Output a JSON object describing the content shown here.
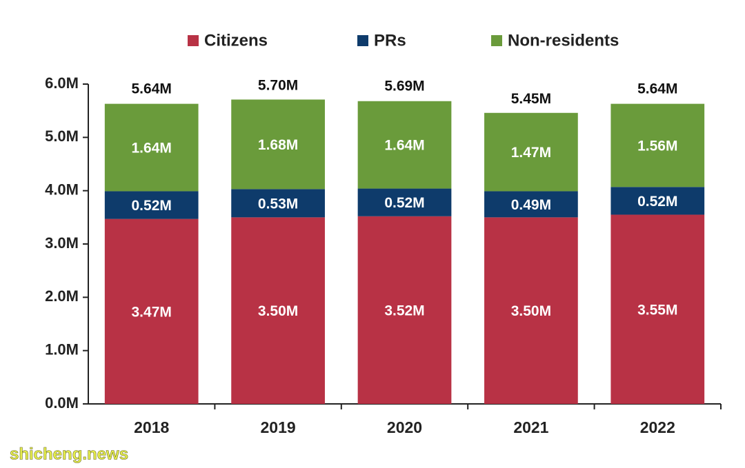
{
  "chart_data": {
    "type": "stacked_bar",
    "categories": [
      "2018",
      "2019",
      "2020",
      "2021",
      "2022"
    ],
    "series": [
      {
        "name": "Citizens",
        "color": "#b83245",
        "values": [
          3.47,
          3.5,
          3.52,
          3.5,
          3.55
        ],
        "value_labels": [
          "3.47M",
          "3.50M",
          "3.52M",
          "3.50M",
          "3.55M"
        ]
      },
      {
        "name": "PRs",
        "color": "#0e3b6b",
        "values": [
          0.52,
          0.53,
          0.52,
          0.49,
          0.52
        ],
        "value_labels": [
          "0.52M",
          "0.53M",
          "0.52M",
          "0.49M",
          "0.52M"
        ]
      },
      {
        "name": "Non-residents",
        "color": "#6a9b3b",
        "values": [
          1.64,
          1.68,
          1.64,
          1.47,
          1.56
        ],
        "value_labels": [
          "1.64M",
          "1.68M",
          "1.64M",
          "1.47M",
          "1.56M"
        ]
      }
    ],
    "totals": {
      "values": [
        5.64,
        5.7,
        5.69,
        5.45,
        5.64
      ],
      "value_labels": [
        "5.64M",
        "5.70M",
        "5.69M",
        "5.45M",
        "5.64M"
      ]
    },
    "ylim": [
      0,
      6
    ],
    "yticks": [
      {
        "value": 0,
        "label": "0.0M"
      },
      {
        "value": 1,
        "label": "1.0M"
      },
      {
        "value": 2,
        "label": "2.0M"
      },
      {
        "value": 3,
        "label": "3.0M"
      },
      {
        "value": 4,
        "label": "4.0M"
      },
      {
        "value": 5,
        "label": "5.0M"
      },
      {
        "value": 6,
        "label": "6.0M"
      }
    ],
    "grid": false,
    "legend": "top",
    "watermark": "shicheng.news"
  }
}
